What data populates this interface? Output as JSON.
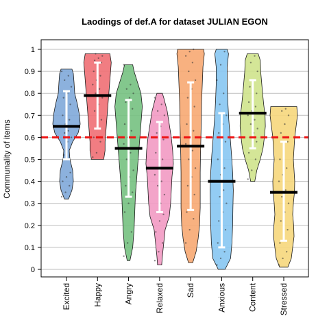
{
  "chart_data": {
    "type": "pirateplot",
    "title": "Laodings of def.A for dataset JULIAN EGON",
    "ylabel": "Communality of items",
    "xlabel": "",
    "ylim": [
      0,
      1
    ],
    "yticks": [
      "0",
      "0.1",
      "0.2",
      "0.3",
      "0.4",
      "0.5",
      "0.6",
      "0.7",
      "0.8",
      "0.9",
      "1"
    ],
    "grid": true,
    "reference_line": {
      "value": 0.6,
      "color": "#ee1111",
      "style": "dashed"
    },
    "categories": [
      "Excited",
      "Happy",
      "Angry",
      "Relaxed",
      "Sad",
      "Anxious",
      "Content",
      "Stressed"
    ],
    "series": [
      {
        "category": "Excited",
        "color": "#7fa9d9",
        "mean": 0.65,
        "ci": [
          0.5,
          0.81
        ],
        "range": [
          0.32,
          0.91
        ],
        "violin": [
          [
            0.32,
            0.15
          ],
          [
            0.36,
            0.4
          ],
          [
            0.4,
            0.5
          ],
          [
            0.45,
            0.45
          ],
          [
            0.5,
            0.25
          ],
          [
            0.54,
            0.2
          ],
          [
            0.58,
            0.45
          ],
          [
            0.62,
            0.85
          ],
          [
            0.66,
            1.0
          ],
          [
            0.7,
            0.95
          ],
          [
            0.75,
            0.8
          ],
          [
            0.8,
            0.6
          ],
          [
            0.85,
            0.55
          ],
          [
            0.89,
            0.5
          ],
          [
            0.91,
            0.4
          ]
        ],
        "points": [
          0.33,
          0.35,
          0.38,
          0.4,
          0.42,
          0.44,
          0.52,
          0.58,
          0.6,
          0.62,
          0.63,
          0.65,
          0.66,
          0.68,
          0.7,
          0.72,
          0.75,
          0.78,
          0.8,
          0.83,
          0.86,
          0.88,
          0.9
        ]
      },
      {
        "category": "Happy",
        "color": "#ef6f74",
        "mean": 0.79,
        "ci": [
          0.64,
          0.94
        ],
        "range": [
          0.5,
          0.98
        ],
        "violin": [
          [
            0.5,
            0.45
          ],
          [
            0.54,
            0.55
          ],
          [
            0.58,
            0.55
          ],
          [
            0.62,
            0.6
          ],
          [
            0.66,
            0.65
          ],
          [
            0.7,
            0.7
          ],
          [
            0.74,
            0.75
          ],
          [
            0.78,
            0.8
          ],
          [
            0.82,
            0.85
          ],
          [
            0.86,
            0.9
          ],
          [
            0.9,
            0.95
          ],
          [
            0.94,
            1.0
          ],
          [
            0.98,
            0.9
          ]
        ],
        "points": [
          0.51,
          0.53,
          0.58,
          0.6,
          0.65,
          0.68,
          0.72,
          0.75,
          0.78,
          0.8,
          0.82,
          0.84,
          0.86,
          0.88,
          0.9,
          0.92,
          0.94,
          0.95,
          0.96,
          0.97,
          0.98
        ]
      },
      {
        "category": "Angry",
        "color": "#76c181",
        "mean": 0.55,
        "ci": [
          0.33,
          0.77
        ],
        "range": [
          0.04,
          0.93
        ],
        "violin": [
          [
            0.04,
            0.1
          ],
          [
            0.1,
            0.3
          ],
          [
            0.18,
            0.4
          ],
          [
            0.26,
            0.45
          ],
          [
            0.34,
            0.5
          ],
          [
            0.42,
            0.6
          ],
          [
            0.5,
            0.7
          ],
          [
            0.58,
            0.8
          ],
          [
            0.66,
            0.9
          ],
          [
            0.74,
            1.0
          ],
          [
            0.8,
            0.9
          ],
          [
            0.86,
            0.6
          ],
          [
            0.9,
            0.4
          ],
          [
            0.93,
            0.3
          ]
        ],
        "points": [
          0.06,
          0.12,
          0.17,
          0.26,
          0.3,
          0.35,
          0.38,
          0.42,
          0.45,
          0.5,
          0.53,
          0.57,
          0.6,
          0.63,
          0.66,
          0.7,
          0.73,
          0.76,
          0.78,
          0.8,
          0.82,
          0.84,
          0.93
        ]
      },
      {
        "category": "Relaxed",
        "color": "#f29ac3",
        "mean": 0.46,
        "ci": [
          0.26,
          0.67
        ],
        "range": [
          0.02,
          0.8
        ],
        "violin": [
          [
            0.02,
            0.15
          ],
          [
            0.06,
            0.2
          ],
          [
            0.12,
            0.3
          ],
          [
            0.18,
            0.4
          ],
          [
            0.24,
            0.7
          ],
          [
            0.3,
            0.8
          ],
          [
            0.36,
            0.85
          ],
          [
            0.42,
            0.9
          ],
          [
            0.48,
            1.0
          ],
          [
            0.54,
            0.95
          ],
          [
            0.6,
            0.85
          ],
          [
            0.66,
            0.7
          ],
          [
            0.72,
            0.55
          ],
          [
            0.78,
            0.3
          ],
          [
            0.8,
            0.2
          ]
        ],
        "points": [
          0.04,
          0.08,
          0.12,
          0.17,
          0.22,
          0.25,
          0.26,
          0.3,
          0.34,
          0.38,
          0.4,
          0.43,
          0.46,
          0.5,
          0.53,
          0.56,
          0.59,
          0.62,
          0.65,
          0.7,
          0.72,
          0.75,
          0.78
        ]
      },
      {
        "category": "Sad",
        "color": "#f7a872",
        "mean": 0.56,
        "ci": [
          0.27,
          0.85
        ],
        "range": [
          0.03,
          1.0
        ],
        "violin": [
          [
            0.03,
            0.15
          ],
          [
            0.08,
            0.4
          ],
          [
            0.14,
            0.55
          ],
          [
            0.2,
            0.65
          ],
          [
            0.28,
            0.7
          ],
          [
            0.36,
            0.7
          ],
          [
            0.44,
            0.7
          ],
          [
            0.52,
            0.72
          ],
          [
            0.6,
            0.75
          ],
          [
            0.68,
            0.78
          ],
          [
            0.76,
            0.8
          ],
          [
            0.84,
            0.85
          ],
          [
            0.92,
            0.9
          ],
          [
            0.98,
            1.0
          ],
          [
            1.0,
            0.95
          ]
        ],
        "points": [
          0.12,
          0.18,
          0.23,
          0.26,
          0.3,
          0.34,
          0.38,
          0.42,
          0.46,
          0.5,
          0.54,
          0.57,
          0.6,
          0.63,
          0.66,
          0.7,
          0.74,
          0.78,
          0.82,
          0.86,
          0.9,
          0.94,
          0.97,
          0.99,
          1.0
        ]
      },
      {
        "category": "Anxious",
        "color": "#87c7f2",
        "mean": 0.4,
        "ci": [
          0.1,
          0.71
        ],
        "range": [
          0.0,
          1.0
        ],
        "violin": [
          [
            0.0,
            0.25
          ],
          [
            0.05,
            0.65
          ],
          [
            0.12,
            0.75
          ],
          [
            0.2,
            0.8
          ],
          [
            0.28,
            0.82
          ],
          [
            0.36,
            0.85
          ],
          [
            0.44,
            0.8
          ],
          [
            0.52,
            0.72
          ],
          [
            0.6,
            0.62
          ],
          [
            0.68,
            0.52
          ],
          [
            0.76,
            0.45
          ],
          [
            0.84,
            0.4
          ],
          [
            0.92,
            0.4
          ],
          [
            0.98,
            0.5
          ],
          [
            1.0,
            0.4
          ]
        ],
        "points": [
          0.02,
          0.05,
          0.08,
          0.12,
          0.15,
          0.18,
          0.22,
          0.26,
          0.3,
          0.33,
          0.36,
          0.4,
          0.43,
          0.46,
          0.5,
          0.54,
          0.58,
          0.62,
          0.66,
          0.7,
          0.75,
          0.8,
          0.86,
          0.93,
          0.99
        ]
      },
      {
        "category": "Content",
        "color": "#cfe38c",
        "mean": 0.71,
        "ci": [
          0.55,
          0.86
        ],
        "range": [
          0.4,
          0.98
        ],
        "violin": [
          [
            0.4,
            0.15
          ],
          [
            0.45,
            0.3
          ],
          [
            0.5,
            0.55
          ],
          [
            0.55,
            0.75
          ],
          [
            0.6,
            0.85
          ],
          [
            0.65,
            0.92
          ],
          [
            0.7,
            0.9
          ],
          [
            0.75,
            0.8
          ],
          [
            0.8,
            0.72
          ],
          [
            0.85,
            0.65
          ],
          [
            0.9,
            0.58
          ],
          [
            0.95,
            0.55
          ],
          [
            0.98,
            0.4
          ]
        ],
        "points": [
          0.41,
          0.45,
          0.5,
          0.53,
          0.56,
          0.58,
          0.6,
          0.62,
          0.64,
          0.66,
          0.68,
          0.7,
          0.72,
          0.74,
          0.76,
          0.78,
          0.8,
          0.83,
          0.86,
          0.9,
          0.94,
          0.97
        ]
      },
      {
        "category": "Stressed",
        "color": "#f6d77c",
        "mean": 0.35,
        "ci": [
          0.13,
          0.58
        ],
        "range": [
          0.01,
          0.74
        ],
        "violin": [
          [
            0.01,
            0.3
          ],
          [
            0.05,
            0.55
          ],
          [
            0.1,
            0.65
          ],
          [
            0.15,
            0.75
          ],
          [
            0.2,
            0.72
          ],
          [
            0.25,
            0.65
          ],
          [
            0.3,
            0.7
          ],
          [
            0.35,
            0.78
          ],
          [
            0.4,
            0.8
          ],
          [
            0.45,
            0.75
          ],
          [
            0.5,
            0.7
          ],
          [
            0.55,
            0.75
          ],
          [
            0.6,
            0.8
          ],
          [
            0.65,
            0.9
          ],
          [
            0.7,
            1.0
          ],
          [
            0.74,
            0.95
          ]
        ],
        "points": [
          0.02,
          0.05,
          0.08,
          0.12,
          0.15,
          0.18,
          0.22,
          0.26,
          0.3,
          0.33,
          0.36,
          0.4,
          0.43,
          0.46,
          0.5,
          0.54,
          0.58,
          0.62,
          0.66,
          0.7,
          0.72,
          0.73
        ]
      }
    ]
  }
}
